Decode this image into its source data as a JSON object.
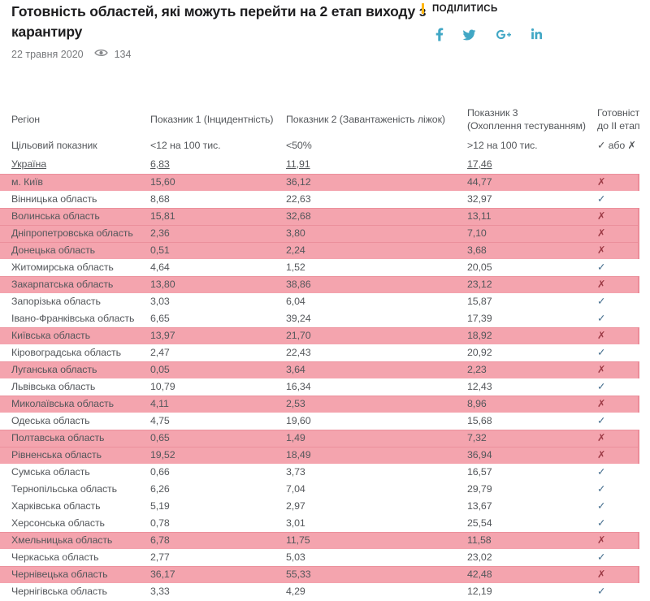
{
  "header": {
    "title": "Готовність областей, які можуть перейти на 2 етап виходу з карантиру",
    "date": "22 травня 2020",
    "views": "134",
    "share_label": "ПОДІЛИТИСЬ"
  },
  "colors": {
    "accent_yellow": "#ffb612",
    "social_blue": "#41a7c5",
    "highlight_pink": "#f4a4ae",
    "highlight_edge": "#eb8c99",
    "check_color": "#47708f",
    "cross_color": "#9c3a45",
    "text_color": "#54575b",
    "title_color": "#1d1d1f",
    "muted_color": "#77797c"
  },
  "social_buttons": [
    {
      "name": "facebook"
    },
    {
      "name": "twitter"
    },
    {
      "name": "google-plus"
    },
    {
      "name": "linkedin"
    }
  ],
  "table": {
    "columns": [
      {
        "line1": "Регіон",
        "line2": ""
      },
      {
        "line1": "Показник 1 (Інцидентність)",
        "line2": ""
      },
      {
        "line1": "Показник 2 (Завантаженість ліжок)",
        "line2": ""
      },
      {
        "line1": "Показник 3",
        "line2": "(Охоплення тестуванням)"
      },
      {
        "line1": "Готовність",
        "line2": "до II етапу"
      }
    ],
    "target_row": {
      "region": "Цільовий показник",
      "v1": "<12 на 100 тис.",
      "v2": "<50%",
      "v3": ">12 на 100 тис.",
      "mark": "✓ або ✗"
    },
    "ukraine_row": {
      "region": "Україна",
      "v1": "6,83",
      "v2": "11,91",
      "v3": "17,46"
    },
    "check_glyph": "✓",
    "cross_glyph": "✗",
    "rows": [
      {
        "region": "м. Київ",
        "v1": "15,60",
        "v2": "36,12",
        "v3": "44,77",
        "ready": false
      },
      {
        "region": "Вінницька область",
        "v1": "8,68",
        "v2": "22,63",
        "v3": "32,97",
        "ready": true
      },
      {
        "region": "Волинська область",
        "v1": "15,81",
        "v2": "32,68",
        "v3": "13,11",
        "ready": false
      },
      {
        "region": "Дніпропетровська область",
        "v1": "2,36",
        "v2": "3,80",
        "v3": "7,10",
        "ready": false
      },
      {
        "region": "Донецька область",
        "v1": "0,51",
        "v2": "2,24",
        "v3": "3,68",
        "ready": false
      },
      {
        "region": "Житомирська область",
        "v1": "4,64",
        "v2": "1,52",
        "v3": "20,05",
        "ready": true
      },
      {
        "region": "Закарпатська область",
        "v1": "13,80",
        "v2": "38,86",
        "v3": "23,12",
        "ready": false
      },
      {
        "region": "Запорізька область",
        "v1": "3,03",
        "v2": "6,04",
        "v3": "15,87",
        "ready": true
      },
      {
        "region": "Івано-Франківська область",
        "v1": "6,65",
        "v2": "39,24",
        "v3": "17,39",
        "ready": true
      },
      {
        "region": "Київська область",
        "v1": "13,97",
        "v2": "21,70",
        "v3": "18,92",
        "ready": false
      },
      {
        "region": "Кіровоградська область",
        "v1": "2,47",
        "v2": "22,43",
        "v3": "20,92",
        "ready": true
      },
      {
        "region": "Луганська область",
        "v1": "0,05",
        "v2": "3,64",
        "v3": "2,23",
        "ready": false
      },
      {
        "region": "Львівська область",
        "v1": "10,79",
        "v2": "16,34",
        "v3": "12,43",
        "ready": true
      },
      {
        "region": "Миколаївська область",
        "v1": "4,11",
        "v2": "2,53",
        "v3": "8,96",
        "ready": false
      },
      {
        "region": "Одеська область",
        "v1": "4,75",
        "v2": "19,60",
        "v3": "15,68",
        "ready": true
      },
      {
        "region": "Полтавська область",
        "v1": "0,65",
        "v2": "1,49",
        "v3": "7,32",
        "ready": false
      },
      {
        "region": "Рівненська область",
        "v1": "19,52",
        "v2": "18,49",
        "v3": "36,94",
        "ready": false
      },
      {
        "region": "Сумська область",
        "v1": "0,66",
        "v2": "3,73",
        "v3": "16,57",
        "ready": true
      },
      {
        "region": "Тернопільська область",
        "v1": "6,26",
        "v2": "7,04",
        "v3": "29,79",
        "ready": true
      },
      {
        "region": "Харківська область",
        "v1": "5,19",
        "v2": "2,97",
        "v3": "13,67",
        "ready": true
      },
      {
        "region": "Херсонська область",
        "v1": "0,78",
        "v2": "3,01",
        "v3": "25,54",
        "ready": true
      },
      {
        "region": "Хмельницька область",
        "v1": "6,78",
        "v2": "11,75",
        "v3": "11,58",
        "ready": false
      },
      {
        "region": "Черкаська область",
        "v1": "2,77",
        "v2": "5,03",
        "v3": "23,02",
        "ready": true
      },
      {
        "region": "Чернівецька область",
        "v1": "36,17",
        "v2": "55,33",
        "v3": "42,48",
        "ready": false
      },
      {
        "region": "Чернігівська область",
        "v1": "3,33",
        "v2": "4,29",
        "v3": "12,19",
        "ready": true
      }
    ]
  }
}
